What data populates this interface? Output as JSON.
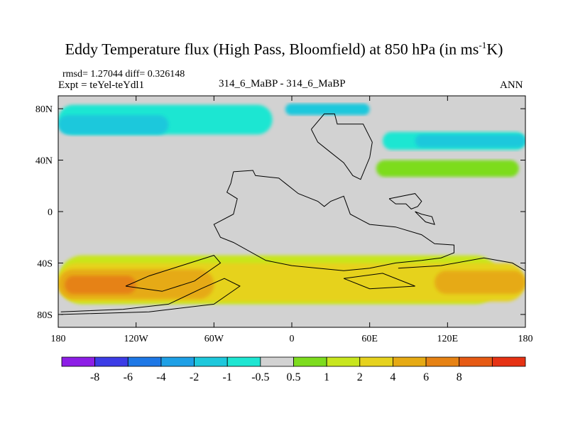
{
  "title_main": "Eddy Temperature flux (High Pass, Bloomfield) at 850 hPa (in ms",
  "title_sup": "-1",
  "title_tail": "K)",
  "stats": "rmsd= 1.27044 diff= 0.326148",
  "expt": "Expt = teYel-teYdl1",
  "case_label": "314_6_MaBP - 314_6_MaBP",
  "season": "ANN",
  "chart_data": {
    "type": "contour map",
    "xlim": [
      -180,
      180
    ],
    "ylim": [
      -90,
      90
    ],
    "x_ticks": [
      {
        "value": -180,
        "label": "180"
      },
      {
        "value": -120,
        "label": "120W"
      },
      {
        "value": -60,
        "label": "60W"
      },
      {
        "value": 0,
        "label": "0"
      },
      {
        "value": 60,
        "label": "60E"
      },
      {
        "value": 120,
        "label": "120E"
      },
      {
        "value": 180,
        "label": "180"
      }
    ],
    "y_ticks": [
      {
        "value": 80,
        "label": "80N"
      },
      {
        "value": 40,
        "label": "40N"
      },
      {
        "value": 0,
        "label": "0"
      },
      {
        "value": -40,
        "label": "40S"
      },
      {
        "value": -80,
        "label": "80S"
      }
    ],
    "colorbar": {
      "colors": [
        "#8d1ee6",
        "#3c3ce6",
        "#1e78e6",
        "#1ea0e6",
        "#1ec8dc",
        "#1ee6d2",
        "#d2d2d2",
        "#7ddc1e",
        "#c8e61e",
        "#e6d21e",
        "#e6aa14",
        "#e68214",
        "#e65a14",
        "#e63214"
      ],
      "labels": [
        "-8",
        "-6",
        "-4",
        "-2",
        "-1",
        "-0.5",
        "0.5",
        "1",
        "2",
        "4",
        "6",
        "8"
      ]
    },
    "background_level": "-0.5 to 0.5",
    "regions": [
      {
        "level": "-1 to -0.5",
        "color": "#1ee6d2",
        "lon_range": [
          -180,
          -15
        ],
        "lat_range": [
          60,
          83
        ],
        "note": "northern band, western hemisphere"
      },
      {
        "level": "-2 to -1",
        "color": "#1ec8dc",
        "lon_range": [
          -180,
          -95
        ],
        "lat_range": [
          60,
          75
        ]
      },
      {
        "level": "-2 to -1",
        "color": "#1ec8dc",
        "lon_range": [
          -5,
          60
        ],
        "lat_range": [
          75,
          84
        ]
      },
      {
        "level": "-1 to -0.5",
        "color": "#1ee6d2",
        "lon_range": [
          70,
          180
        ],
        "lat_range": [
          48,
          62
        ],
        "note": "north pacific storm track"
      },
      {
        "level": "-2 to -1",
        "color": "#1ec8dc",
        "lon_range": [
          95,
          180
        ],
        "lat_range": [
          50,
          60
        ]
      },
      {
        "level": "0.5 to 1",
        "color": "#7ddc1e",
        "lon_range": [
          65,
          175
        ],
        "lat_range": [
          27,
          40
        ]
      },
      {
        "level": "1 to 2",
        "color": "#c8e61e",
        "lon_range": [
          -180,
          160
        ],
        "lat_range": [
          -72,
          -34
        ],
        "note": "southern storm track"
      },
      {
        "level": "2 to 4",
        "color": "#e6d21e",
        "lon_range": [
          -180,
          180
        ],
        "lat_range": [
          -70,
          -40
        ]
      },
      {
        "level": "4 to 6",
        "color": "#e6aa14",
        "lon_range": [
          -180,
          -60
        ],
        "lat_range": [
          -68,
          -45
        ]
      },
      {
        "level": "6 to 8",
        "color": "#e68214",
        "lon_range": [
          -175,
          -120
        ],
        "lat_range": [
          -64,
          -50
        ]
      },
      {
        "level": "4 to 6",
        "color": "#e6aa14",
        "lon_range": [
          110,
          180
        ],
        "lat_range": [
          -64,
          -46
        ]
      }
    ]
  }
}
